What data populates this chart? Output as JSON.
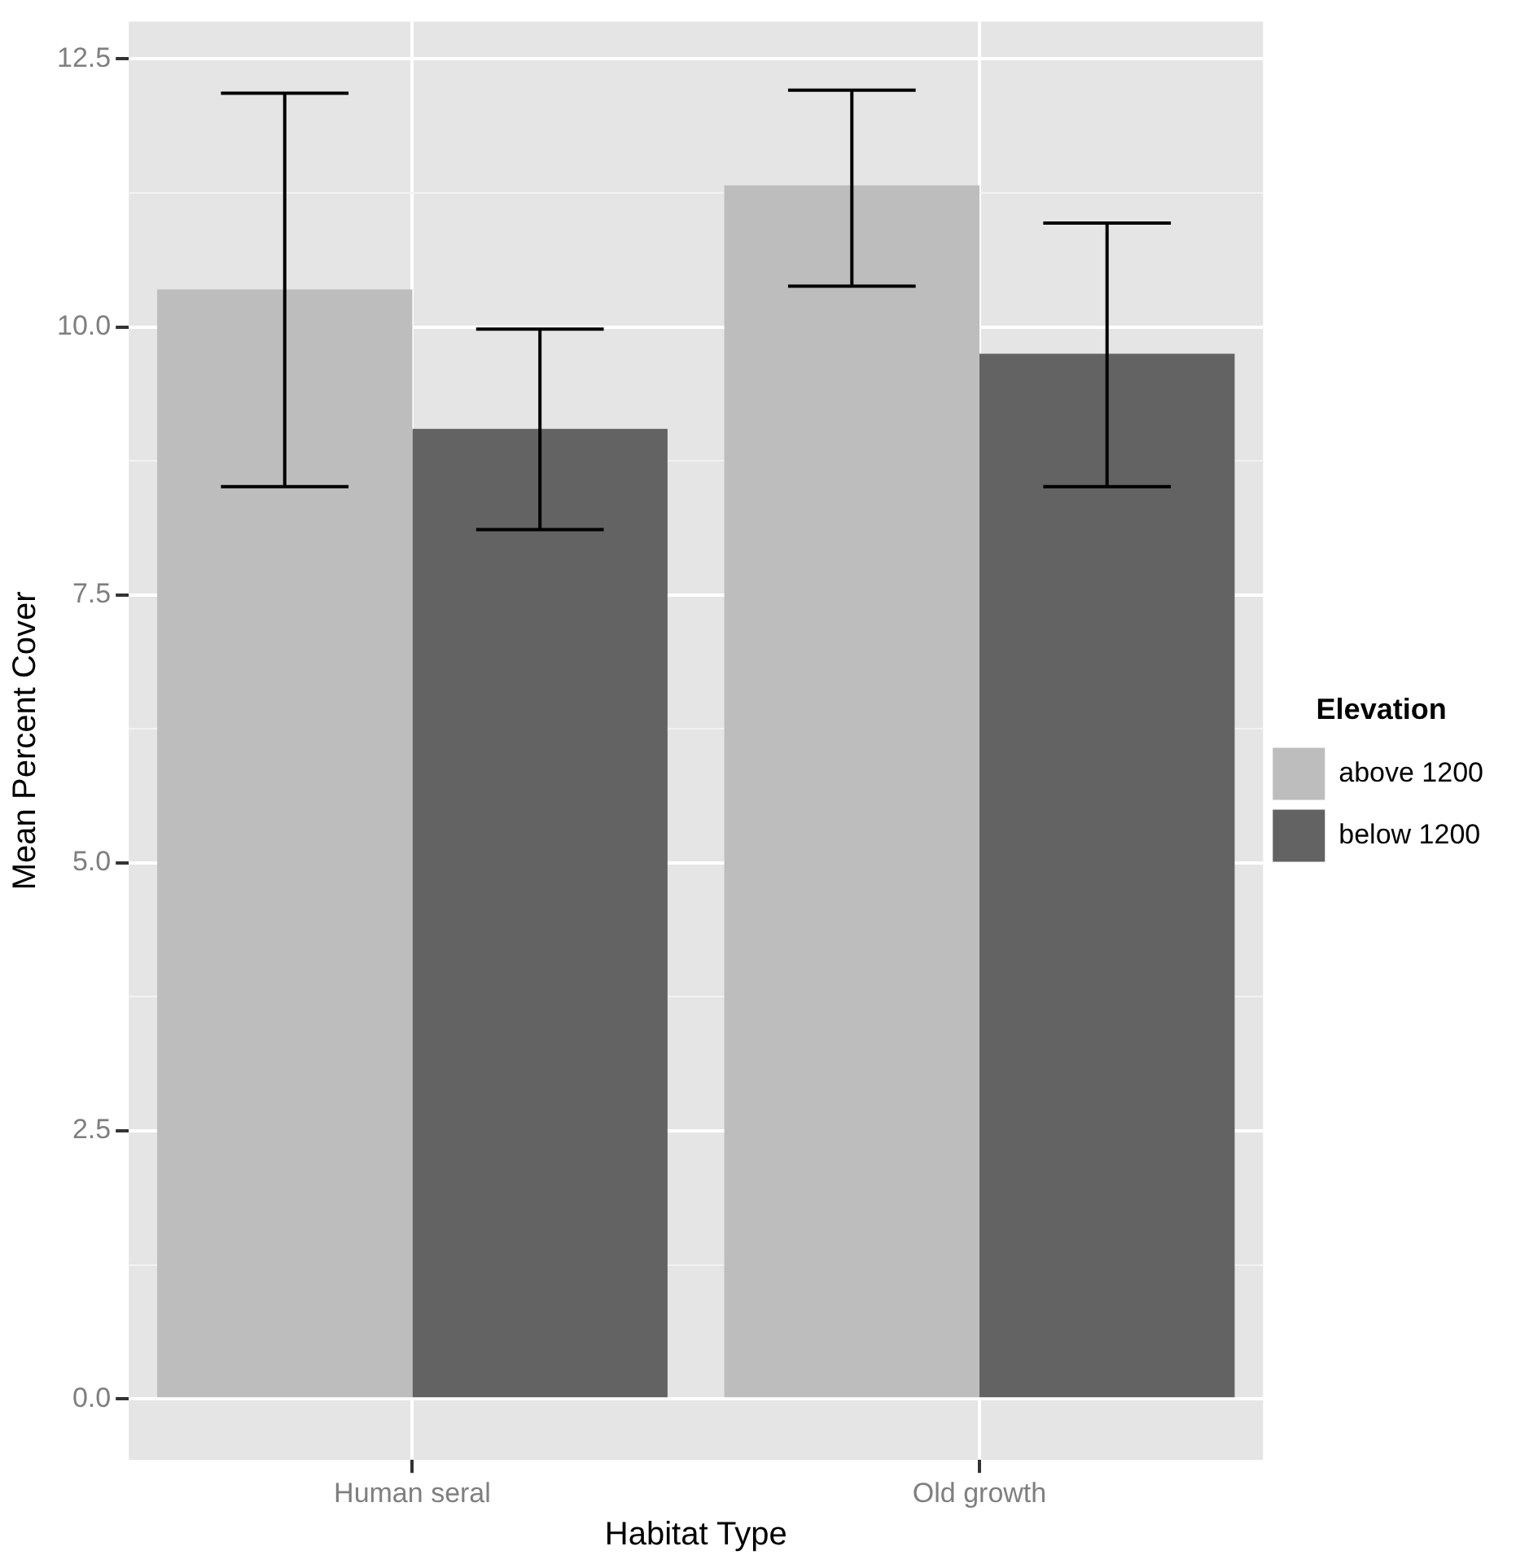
{
  "chart_data": {
    "type": "bar",
    "xlabel": "Habitat Type",
    "ylabel": "Mean Percent Cover",
    "legend_title": "Elevation",
    "legend": "right",
    "grid": true,
    "categories": [
      "Human seral",
      "Old growth"
    ],
    "series": [
      {
        "name": "above 1200",
        "color": "#bdbdbd",
        "values": [
          10.35,
          11.32
        ],
        "errors": [
          [
            8.51,
            12.18
          ],
          [
            10.38,
            12.21
          ]
        ]
      },
      {
        "name": "below 1200",
        "color": "#636363",
        "values": [
          9.05,
          9.75
        ],
        "errors": [
          [
            8.11,
            9.98
          ],
          [
            8.51,
            10.97
          ]
        ]
      }
    ],
    "ylim": [
      -0.57,
      12.85
    ],
    "yticks": [
      {
        "value": 0,
        "label": "0.0"
      },
      {
        "value": 1.25,
        "label": null
      },
      {
        "value": 2.5,
        "label": "2.5"
      },
      {
        "value": 3.75,
        "label": null
      },
      {
        "value": 5,
        "label": "5.0"
      },
      {
        "value": 6.25,
        "label": null
      },
      {
        "value": 7.5,
        "label": "7.5"
      },
      {
        "value": 8.75,
        "label": null
      },
      {
        "value": 10,
        "label": "10.0"
      },
      {
        "value": 11.25,
        "label": null
      },
      {
        "value": 12.5,
        "label": "12.5"
      }
    ]
  }
}
